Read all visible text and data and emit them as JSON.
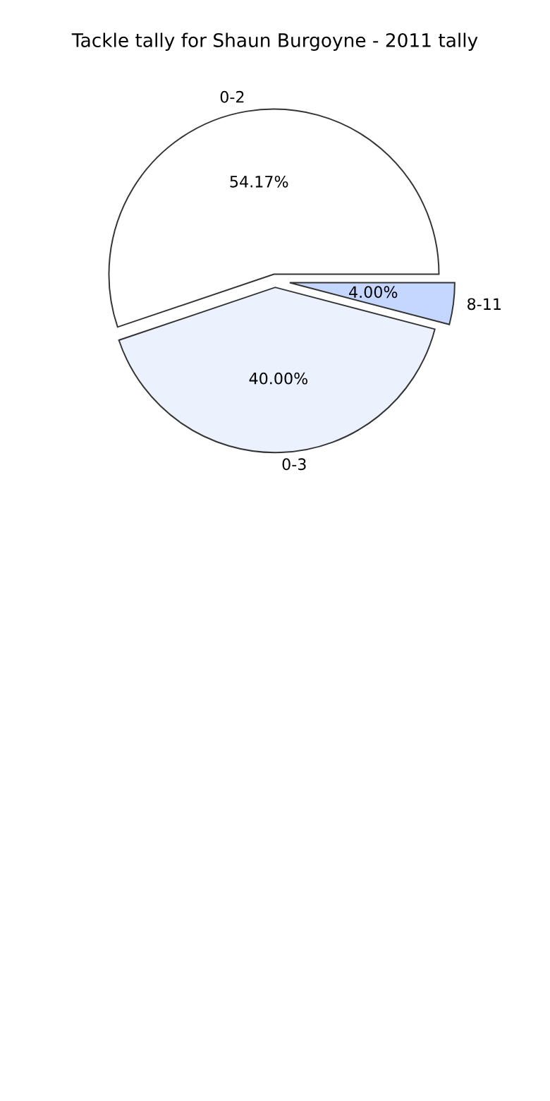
{
  "chart_data": {
    "type": "pie",
    "title": "Tackle tally for Shaun Burgoyne - 2011 tally",
    "categories": [
      "0-2",
      "0-3",
      "8-11"
    ],
    "values": [
      54.17,
      40.0,
      4.0
    ],
    "colors": [
      "#ffffff",
      "#ecf1fe",
      "#c5d7fe"
    ],
    "value_labels": [
      "54.17%",
      "40.00%",
      "4.00%"
    ]
  }
}
